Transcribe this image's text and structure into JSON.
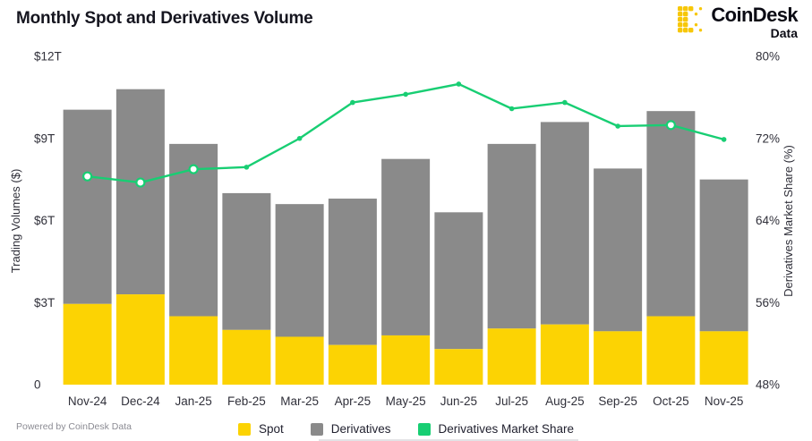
{
  "header": {
    "title": "Monthly Spot and Derivatives Volume",
    "brand": {
      "name": "CoinDesk",
      "sub": "Data",
      "logo_color": "#f7c708"
    }
  },
  "footer": {
    "powered_by": "Powered by CoinDesk Data"
  },
  "legend": {
    "items": [
      {
        "label": "Spot",
        "color": "#fcd303"
      },
      {
        "label": "Derivatives",
        "color": "#8a8a8a"
      },
      {
        "label": "Derivatives Market Share",
        "color": "#18ce73"
      }
    ]
  },
  "chart_data": {
    "type": "bar",
    "subtype": "stacked-bars-with-line-overlay",
    "title": "Monthly Spot and Derivatives Volume",
    "categories": [
      "Nov-24",
      "Dec-24",
      "Jan-25",
      "Feb-25",
      "Mar-25",
      "Apr-25",
      "May-25",
      "Jun-25",
      "Jul-25",
      "Aug-25",
      "Sep-25",
      "Oct-25",
      "Nov-25"
    ],
    "series": [
      {
        "name": "Spot",
        "type": "bar",
        "stack": "volume",
        "axis": "left",
        "unit": "$T",
        "color": "#fcd303",
        "values": [
          2.95,
          3.3,
          2.5,
          2.0,
          1.75,
          1.45,
          1.8,
          1.3,
          2.05,
          2.2,
          1.95,
          2.5,
          1.95
        ]
      },
      {
        "name": "Derivatives",
        "type": "bar",
        "stack": "volume",
        "axis": "left",
        "unit": "$T",
        "color": "#8a8a8a",
        "values": [
          7.1,
          7.5,
          6.3,
          5.0,
          4.85,
          5.35,
          6.45,
          5.0,
          6.75,
          7.4,
          5.95,
          7.5,
          5.55
        ]
      },
      {
        "name": "Derivatives Market Share",
        "type": "line",
        "axis": "right",
        "unit": "%",
        "color": "#18ce73",
        "values": [
          68.3,
          67.7,
          69.0,
          69.2,
          72.0,
          75.5,
          76.3,
          77.3,
          74.9,
          75.5,
          73.2,
          73.3,
          71.9
        ],
        "open_marker_indices": [
          0,
          1,
          2,
          11
        ]
      }
    ],
    "left_axis": {
      "label": "Trading Volumes ($)",
      "ticks": [
        "$12T",
        "$9T",
        "$6T",
        "$3T",
        "0"
      ],
      "min": 0,
      "max": 12
    },
    "right_axis": {
      "label": "Derivatives Market Share (%)",
      "ticks": [
        "80%",
        "72%",
        "64%",
        "56%",
        "48%"
      ],
      "min": 48,
      "max": 80
    },
    "grid": false,
    "legend_position": "bottom"
  }
}
